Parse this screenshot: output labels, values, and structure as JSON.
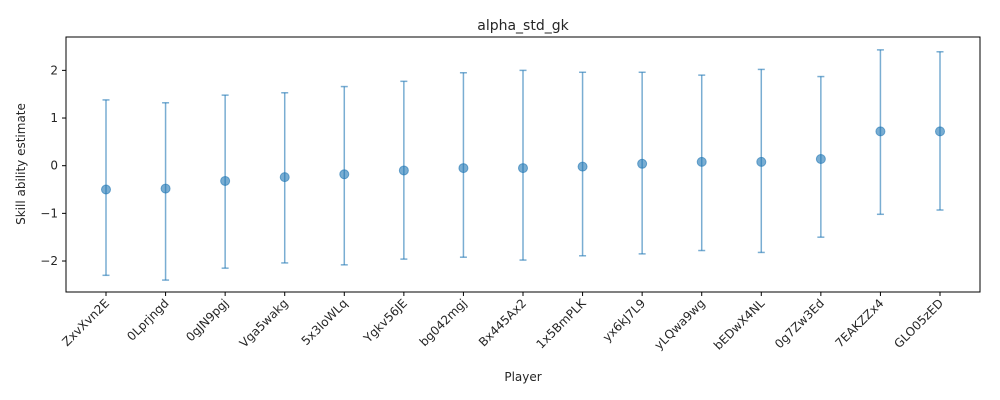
{
  "chart_data": {
    "type": "scatter",
    "title": "alpha_std_gk",
    "xlabel": "Player",
    "ylabel": "Skill ability estimate",
    "ylim": [
      -2.65,
      2.7
    ],
    "yticks": [
      -2,
      -1,
      0,
      1,
      2
    ],
    "ytick_labels": [
      "−2",
      "−1",
      "0",
      "1",
      "2"
    ],
    "grid": false,
    "legend": "none",
    "point_color": "#1f77b4",
    "categories": [
      "ZxvXvn2E",
      "0Lprjngd",
      "0gJN9pgj",
      "Vga5wakg",
      "5x3loWLq",
      "Ygkv56JE",
      "bg042mgj",
      "Bx445Ax2",
      "1x5BmPLK",
      "yx6kJ7L9",
      "yLQwa9wg",
      "bEDwX4NL",
      "0g7Zw3Ed",
      "7EAKZZx4",
      "GLO05zED"
    ],
    "series": [
      {
        "values": [
          -0.5,
          -0.48,
          -0.32,
          -0.24,
          -0.18,
          -0.1,
          -0.05,
          -0.05,
          -0.02,
          0.04,
          0.08,
          0.08,
          0.14,
          0.72,
          0.72
        ],
        "lower": [
          -2.3,
          -2.4,
          -2.15,
          -2.04,
          -2.08,
          -1.96,
          -1.92,
          -1.98,
          -1.89,
          -1.85,
          -1.78,
          -1.82,
          -1.5,
          -1.02,
          -0.93
        ],
        "upper": [
          1.38,
          1.32,
          1.48,
          1.53,
          1.66,
          1.77,
          1.95,
          2.0,
          1.96,
          1.96,
          1.9,
          2.02,
          1.87,
          2.43,
          2.39
        ]
      }
    ]
  }
}
